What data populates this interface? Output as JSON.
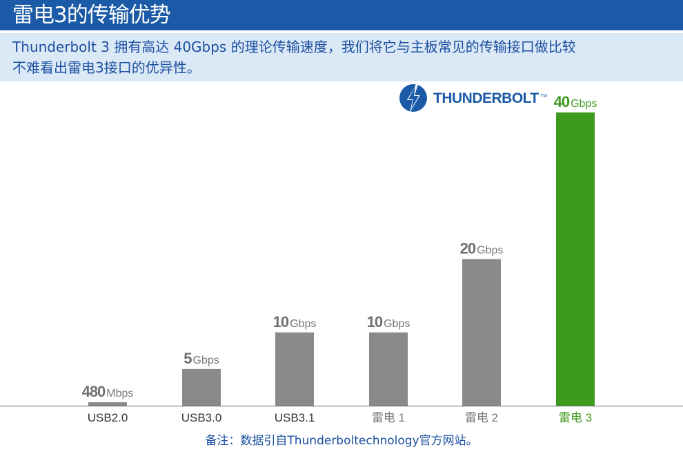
{
  "header": {
    "title": "雷电3的传输优势",
    "subtitle_lines": [
      "Thunderbolt 3 拥有高达 40Gbps 的理论传输速度，我们将它与主板常见的传输接口做比较",
      "不难看出雷电3接口的优异性。"
    ]
  },
  "brand": {
    "name": "THUNDERBOLT",
    "tm": "TM",
    "icon": "thunderbolt-logo-icon"
  },
  "note": "备注：数据引自Thunderboltechnology官方网站。",
  "colors": {
    "title_bar": "#1a5aa6",
    "subtitle_bg": "#dbe8f6",
    "bar_gray": "#8a8a8a",
    "bar_highlight": "#3e9a1f",
    "text_blue": "#1b4fa0"
  },
  "chart_data": {
    "type": "bar",
    "categories": [
      "USB2.0",
      "USB3.0",
      "USB3.1",
      "雷电 1",
      "雷电 2",
      "雷电 3"
    ],
    "values": [
      0.48,
      5,
      10,
      10,
      20,
      40
    ],
    "value_labels": [
      {
        "number": "480",
        "unit": "Mbps"
      },
      {
        "number": "5",
        "unit": "Gbps"
      },
      {
        "number": "10",
        "unit": "Gbps"
      },
      {
        "number": "10",
        "unit": "Gbps"
      },
      {
        "number": "20",
        "unit": "Gbps"
      },
      {
        "number": "40",
        "unit": "Gbps"
      }
    ],
    "highlight_index": 5,
    "ylim": [
      0,
      40
    ],
    "grid": false,
    "title": "",
    "xlabel": "",
    "ylabel": ""
  }
}
